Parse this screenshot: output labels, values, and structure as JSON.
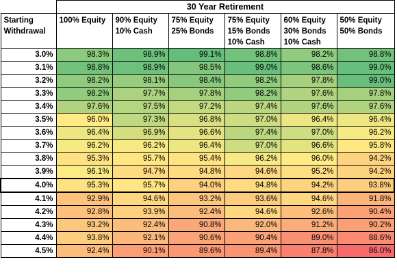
{
  "title": "30 Year Retirement",
  "headers": {
    "corner": [
      "Starting",
      "Withdrawal"
    ],
    "columns": [
      [
        "100% Equity"
      ],
      [
        "90% Equity",
        "10% Cash"
      ],
      [
        "75% Equity",
        "25% Bonds"
      ],
      [
        "75% Equity",
        "15% Bonds",
        "10% Cash"
      ],
      [
        "60% Equity",
        "30% Bonds",
        "10% Cash"
      ],
      [
        "50% Equity",
        "50% Bonds"
      ]
    ]
  },
  "rows": [
    {
      "rate": "3.0%",
      "values": [
        "98.3%",
        "98.9%",
        "99.1%",
        "98.8%",
        "98.2%",
        "98.8%"
      ]
    },
    {
      "rate": "3.1%",
      "values": [
        "98.8%",
        "98.9%",
        "98.5%",
        "99.0%",
        "98.6%",
        "99.0%"
      ]
    },
    {
      "rate": "3.2%",
      "values": [
        "98.2%",
        "98.1%",
        "98.4%",
        "98.2%",
        "97.8%",
        "99.0%"
      ]
    },
    {
      "rate": "3.3%",
      "values": [
        "98.2%",
        "97.7%",
        "97.8%",
        "98.2%",
        "97.6%",
        "97.8%"
      ]
    },
    {
      "rate": "3.4%",
      "values": [
        "97.6%",
        "97.5%",
        "97.2%",
        "97.4%",
        "97.6%",
        "97.6%"
      ]
    },
    {
      "rate": "3.5%",
      "values": [
        "96.0%",
        "97.3%",
        "96.8%",
        "97.0%",
        "96.4%",
        "96.4%"
      ]
    },
    {
      "rate": "3.6%",
      "values": [
        "96.4%",
        "96.9%",
        "96.6%",
        "97.4%",
        "97.0%",
        "96.2%"
      ]
    },
    {
      "rate": "3.7%",
      "values": [
        "96.2%",
        "96.2%",
        "96.4%",
        "97.0%",
        "96.6%",
        "95.8%"
      ]
    },
    {
      "rate": "3.8%",
      "values": [
        "95.3%",
        "95.7%",
        "95.4%",
        "96.2%",
        "96.0%",
        "94.2%"
      ]
    },
    {
      "rate": "3.9%",
      "values": [
        "96.1%",
        "94.7%",
        "94.8%",
        "94.6%",
        "95.2%",
        "94.2%"
      ]
    },
    {
      "rate": "4.0%",
      "values": [
        "95.3%",
        "95.7%",
        "94.0%",
        "94.8%",
        "94.2%",
        "93.8%"
      ],
      "highlighted": true
    },
    {
      "rate": "4.1%",
      "values": [
        "92.9%",
        "94.6%",
        "93.2%",
        "93.6%",
        "94.6%",
        "91.8%"
      ]
    },
    {
      "rate": "4.2%",
      "values": [
        "92.8%",
        "93.9%",
        "92.4%",
        "94.6%",
        "92.6%",
        "90.4%"
      ]
    },
    {
      "rate": "4.3%",
      "values": [
        "93.2%",
        "92.4%",
        "90.8%",
        "92.0%",
        "91.2%",
        "90.2%"
      ]
    },
    {
      "rate": "4.4%",
      "values": [
        "93.8%",
        "92.1%",
        "90.6%",
        "90.4%",
        "89.0%",
        "88.6%"
      ]
    },
    {
      "rate": "4.5%",
      "values": [
        "92.4%",
        "90.1%",
        "89.6%",
        "89.4%",
        "87.8%",
        "86.0%"
      ]
    }
  ],
  "colors": {
    "scale_low": "#f8696b",
    "scale_mid": "#ffeb84",
    "scale_high": "#63be7b",
    "grid": "#000000",
    "background": "#ffffff"
  }
}
